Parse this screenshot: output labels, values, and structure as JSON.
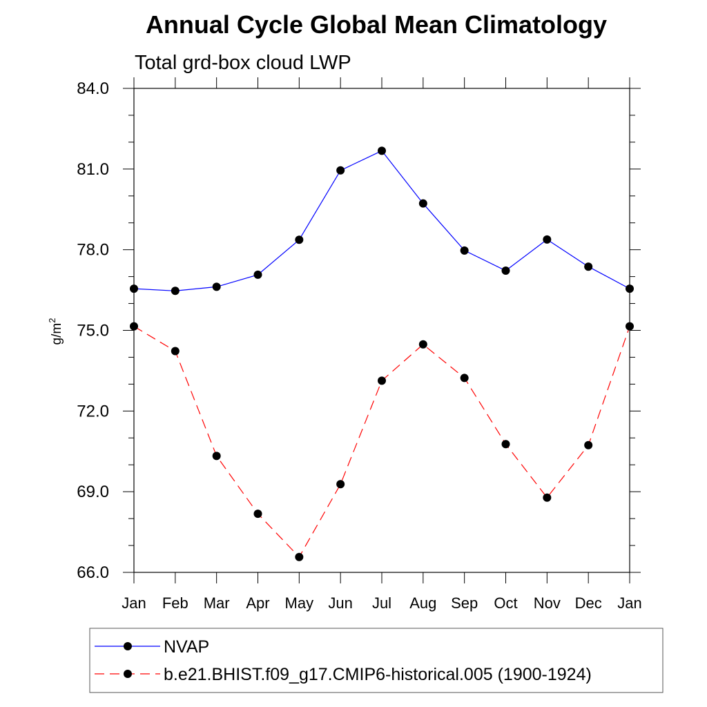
{
  "chart_data": {
    "type": "line",
    "title": "Annual Cycle Global Mean Climatology",
    "subtitle": "Total grd-box cloud LWP",
    "ylabel": "g/m",
    "ylabel_superscript": "2",
    "xlabel": "",
    "categories": [
      "Jan",
      "Feb",
      "Mar",
      "Apr",
      "May",
      "Jun",
      "Jul",
      "Aug",
      "Sep",
      "Oct",
      "Nov",
      "Dec",
      "Jan"
    ],
    "ylim": [
      66.0,
      84.0
    ],
    "yticks": [
      66.0,
      69.0,
      72.0,
      75.0,
      78.0,
      81.0,
      84.0
    ],
    "ytick_labels": [
      "66.0",
      "69.0",
      "72.0",
      "75.0",
      "78.0",
      "81.0",
      "84.0"
    ],
    "yminor_step": 1.0,
    "grid": false,
    "legend_position": "bottom",
    "series": [
      {
        "name": "NVAP",
        "color": "#0000ff",
        "line_style": "solid",
        "marker": "filled-circle",
        "values": [
          76.55,
          76.47,
          76.62,
          77.07,
          78.37,
          80.95,
          81.68,
          79.72,
          77.97,
          77.22,
          78.38,
          77.37,
          76.55
        ]
      },
      {
        "name": "b.e21.BHIST.f09_g17.CMIP6-historical.005 (1900-1924)",
        "color": "#ff0000",
        "line_style": "dashed",
        "marker": "filled-circle",
        "values": [
          75.15,
          74.23,
          70.33,
          68.18,
          66.57,
          69.28,
          73.13,
          74.48,
          73.23,
          70.77,
          68.78,
          70.73,
          75.15
        ]
      }
    ]
  }
}
